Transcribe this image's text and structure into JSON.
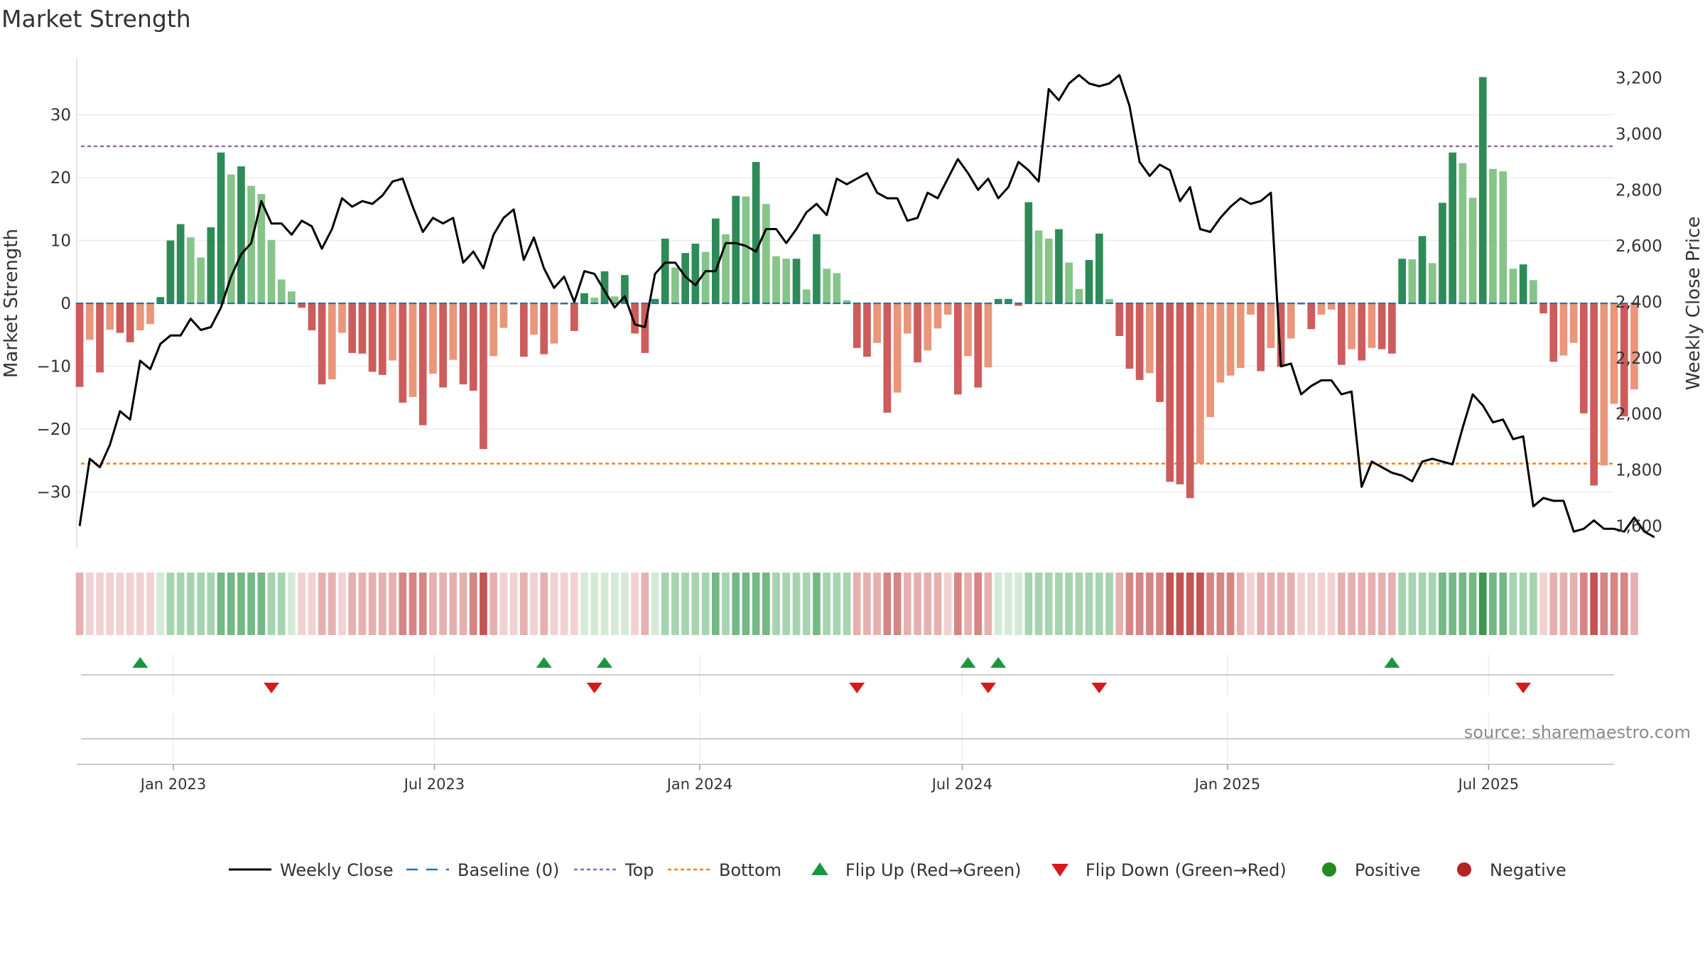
{
  "chart_data": {
    "type": "bar",
    "title": "Market Strength",
    "ylabel": "Market Strength",
    "y2label": "Weekly Close Price",
    "ylim": [
      -39,
      39
    ],
    "y2lim": [
      1520,
      3270
    ],
    "yticks": [
      30,
      20,
      10,
      0,
      -10,
      -20,
      -30
    ],
    "ytick_labels": [
      "30",
      "20",
      "10",
      "0",
      "−10",
      "−20",
      "−30"
    ],
    "y2ticks": [
      3200,
      3000,
      2800,
      2600,
      2400,
      2200,
      2000,
      1800,
      1600
    ],
    "y2tick_labels": [
      "3,200",
      "3,000",
      "2,800",
      "2,600",
      "2,400",
      "2,200",
      "2,000",
      "1,800",
      "1,600"
    ],
    "xlim": [
      "2022-10-26",
      "2025-09-26"
    ],
    "xticks": [
      "2023-01-01",
      "2023-07-01",
      "2024-01-01",
      "2024-07-01",
      "2025-01-01",
      "2025-07-01"
    ],
    "xtick_labels": [
      "Jan 2023",
      "Jul 2023",
      "Jan 2024",
      "Jul 2024",
      "Jan 2025",
      "Jul 2025"
    ],
    "grid": true,
    "top_threshold": 25,
    "bottom_threshold": -25.5,
    "start_week": "2022-10-28",
    "strength": [
      -13.3,
      -5.8,
      -11,
      -4.2,
      -4.7,
      -6.2,
      -4.3,
      -3.3,
      1,
      10,
      12.6,
      10.5,
      7.3,
      12.1,
      24,
      20.5,
      21.8,
      18.7,
      17.4,
      10.1,
      3.8,
      1.9,
      -0.7,
      -4.3,
      -12.9,
      -12.1,
      -4.7,
      -7.9,
      -8,
      -10.9,
      -11.4,
      -9.1,
      -15.8,
      -14.9,
      -19.4,
      -11.2,
      -13.4,
      -9,
      -12.9,
      -13.9,
      -23.2,
      -8.4,
      -3.9,
      0,
      -8.5,
      -5,
      -8.1,
      -6.4,
      0,
      -4.4,
      1.6,
      0.9,
      5.1,
      1.1,
      4.5,
      -4.8,
      -7.9,
      0.7,
      10.3,
      5.7,
      8,
      9.5,
      8.2,
      13.5,
      11,
      17.1,
      17,
      22.5,
      15.8,
      7.5,
      7.1,
      7.1,
      2.2,
      11,
      5.5,
      4.8,
      0.5,
      -7.1,
      -8.5,
      -6.3,
      -17.4,
      -14.2,
      -4.8,
      -9.4,
      -7.5,
      -4,
      -1.8,
      -14.5,
      -8.4,
      -13.4,
      -10.2,
      0.7,
      0.7,
      -0.4,
      16.1,
      11.6,
      10.3,
      11.8,
      6.5,
      2.3,
      6.9,
      11.1,
      0.7,
      -5.2,
      -10.4,
      -12.2,
      -11.1,
      -15.7,
      -28.4,
      -28.8,
      -31,
      -25.5,
      -18.1,
      -12.6,
      -11.5,
      -10.3,
      -1.8,
      -10.8,
      -7.1,
      -10.1,
      -5.6,
      0,
      -4.1,
      -1.8,
      -1,
      -9.8,
      -7.3,
      -9.1,
      -7.1,
      -7.3,
      -8,
      7.1,
      7,
      10.7,
      6.4,
      16,
      24,
      22.3,
      16.8,
      36,
      21.4,
      21,
      5.5,
      6.2,
      3.7,
      -1.6,
      -9.3,
      -8.3,
      -6.3,
      -17.5,
      -29,
      -25.8,
      -16,
      -18,
      -13.7
    ],
    "weekly_close": [
      1600,
      1840,
      1810,
      1890,
      2010,
      1980,
      2190,
      2160,
      2250,
      2280,
      2280,
      2340,
      2300,
      2310,
      2380,
      2490,
      2570,
      2610,
      2760,
      2680,
      2680,
      2640,
      2690,
      2670,
      2590,
      2660,
      2770,
      2740,
      2760,
      2750,
      2780,
      2830,
      2840,
      2740,
      2650,
      2700,
      2680,
      2700,
      2540,
      2580,
      2520,
      2640,
      2700,
      2730,
      2550,
      2630,
      2520,
      2450,
      2490,
      2400,
      2510,
      2500,
      2440,
      2380,
      2420,
      2320,
      2310,
      2500,
      2540,
      2540,
      2490,
      2460,
      2510,
      2510,
      2610,
      2610,
      2600,
      2580,
      2660,
      2660,
      2610,
      2660,
      2720,
      2750,
      2710,
      2840,
      2820,
      2840,
      2860,
      2790,
      2770,
      2770,
      2690,
      2700,
      2790,
      2770,
      2840,
      2910,
      2860,
      2800,
      2840,
      2770,
      2810,
      2900,
      2870,
      2830,
      3160,
      3120,
      3180,
      3210,
      3180,
      3170,
      3180,
      3210,
      3100,
      2900,
      2850,
      2890,
      2870,
      2760,
      2810,
      2660,
      2650,
      2700,
      2740,
      2770,
      2750,
      2760,
      2790,
      2170,
      2180,
      2070,
      2100,
      2120,
      2120,
      2070,
      2080,
      1740,
      1830,
      1810,
      1790,
      1780,
      1760,
      1830,
      1840,
      1830,
      1820,
      1950,
      2070,
      2030,
      1970,
      1980,
      1910,
      1920,
      1670,
      1700,
      1690,
      1690,
      1580,
      1590,
      1620,
      1590,
      1590,
      1580,
      1630,
      1580,
      1560
    ],
    "regime": [
      -2,
      -1,
      -1,
      -1,
      -1,
      -1,
      -1,
      -1,
      1,
      2,
      2,
      2,
      2,
      2,
      3,
      3,
      3,
      3,
      3,
      2,
      2,
      1,
      -1,
      -1,
      -2,
      -2,
      -1,
      -2,
      -2,
      -2,
      -2,
      -2,
      -3,
      -3,
      -3,
      -2,
      -2,
      -2,
      -2,
      -3,
      -4,
      -2,
      -1,
      -1,
      -2,
      -1,
      -2,
      -1,
      -1,
      -1,
      1,
      1,
      1,
      1,
      1,
      -1,
      -2,
      1,
      2,
      2,
      2,
      2,
      2,
      3,
      2,
      3,
      3,
      3,
      3,
      2,
      2,
      2,
      2,
      3,
      2,
      2,
      2,
      -2,
      -2,
      -2,
      -3,
      -3,
      -2,
      -2,
      -2,
      -2,
      -1,
      -3,
      -2,
      -3,
      -2,
      1,
      1,
      1,
      2,
      2,
      2,
      2,
      2,
      2,
      2,
      2,
      2,
      -2,
      -3,
      -3,
      -3,
      -3,
      -4,
      -4,
      -4,
      -4,
      -3,
      -3,
      -3,
      -2,
      -1,
      -2,
      -2,
      -2,
      -2,
      -1,
      -1,
      -1,
      -1,
      -2,
      -2,
      -2,
      -2,
      -2,
      -2,
      2,
      2,
      2,
      2,
      3,
      3,
      3,
      3,
      4,
      3,
      3,
      2,
      2,
      2,
      -1,
      -2,
      -2,
      -2,
      -3,
      -4,
      -3,
      -3,
      -3,
      -2
    ],
    "flip_up": [
      "2022-12-09",
      "2023-09-15",
      "2023-10-27",
      "2024-07-05",
      "2024-07-26",
      "2025-04-25"
    ],
    "flip_down": [
      "2023-03-10",
      "2023-10-20",
      "2024-04-19",
      "2024-07-19",
      "2024-10-04",
      "2025-07-25"
    ],
    "colors": {
      "strong_pos": "#2e8b57",
      "weak_pos": "#86c48a",
      "strong_neg": "#cd5c5c",
      "weak_neg": "#e9967a",
      "close_line": "#000000",
      "baseline": "#1f77b4",
      "top": "#9467bd",
      "bottom": "#ff7f0e",
      "flip_up": "#1a9641",
      "flip_down": "#d7191c",
      "positive": "#228b22",
      "negative": "#b22222"
    },
    "legend_position": "bottom-center",
    "legend": [
      {
        "label": "Weekly Close",
        "kind": "line"
      },
      {
        "label": "Baseline (0)",
        "kind": "dash"
      },
      {
        "label": "Top",
        "kind": "dotted-purple"
      },
      {
        "label": "Bottom",
        "kind": "dotted-orange"
      },
      {
        "label": "Flip Up (Red→Green)",
        "kind": "triangle-up"
      },
      {
        "label": "Flip Down (Green→Red)",
        "kind": "triangle-down"
      },
      {
        "label": "Positive",
        "kind": "dot-green"
      },
      {
        "label": "Negative",
        "kind": "dot-red"
      }
    ],
    "source": "source: sharemaestro.com"
  }
}
